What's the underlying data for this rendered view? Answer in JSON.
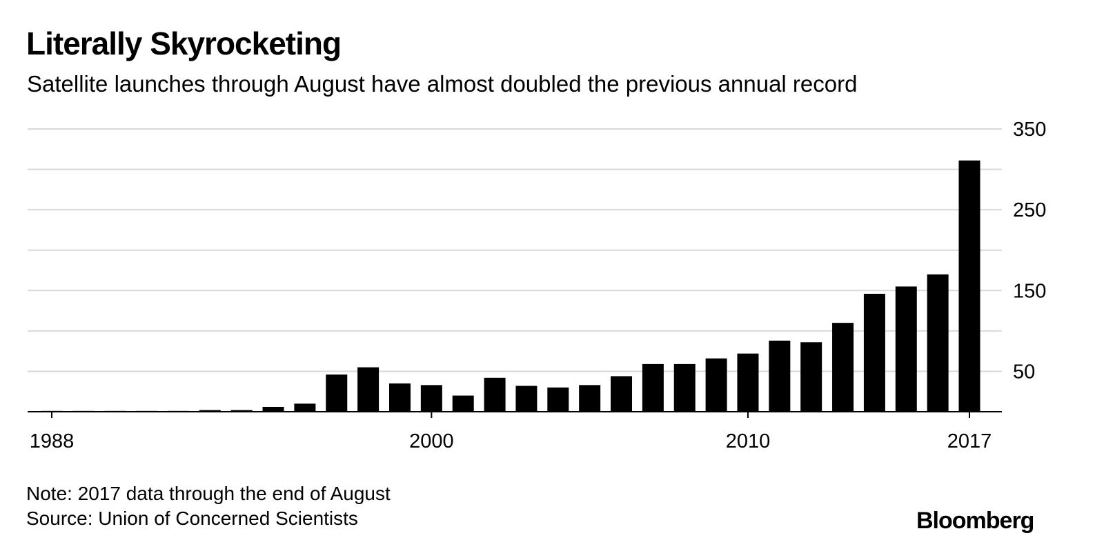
{
  "header": {
    "title": "Literally Skyrocketing",
    "subtitle": "Satellite launches through August have almost doubled the previous annual record"
  },
  "footer": {
    "note": "Note: 2017 data through the end of August",
    "source": "Source: Union of Concerned Scientists",
    "brand": "Bloomberg"
  },
  "colors": {
    "bar": "#000000",
    "grid": "#d9d9d9",
    "axis": "#000000"
  },
  "chart_data": {
    "type": "bar",
    "title": "Literally Skyrocketing",
    "subtitle": "Satellite launches through August have almost doubled the previous annual record",
    "xlabel": "",
    "ylabel": "",
    "categories": [
      1988,
      1989,
      1990,
      1991,
      1992,
      1993,
      1994,
      1995,
      1996,
      1997,
      1998,
      1999,
      2000,
      2001,
      2002,
      2003,
      2004,
      2005,
      2006,
      2007,
      2008,
      2009,
      2010,
      2011,
      2012,
      2013,
      2014,
      2015,
      2016,
      2017
    ],
    "values": [
      1,
      1,
      1,
      1,
      1,
      2,
      2,
      6,
      10,
      46,
      55,
      35,
      33,
      20,
      42,
      32,
      30,
      33,
      44,
      59,
      59,
      66,
      72,
      88,
      86,
      110,
      146,
      155,
      170,
      311
    ],
    "ylim": [
      0,
      350
    ],
    "y_ticks": [
      50,
      150,
      250,
      350
    ],
    "y_gridlines": [
      50,
      100,
      150,
      200,
      250,
      300,
      350
    ],
    "x_tick_labels": [
      1988,
      2000,
      2010,
      2017
    ],
    "y_axis_position": "right",
    "grid": true,
    "legend": "none"
  }
}
